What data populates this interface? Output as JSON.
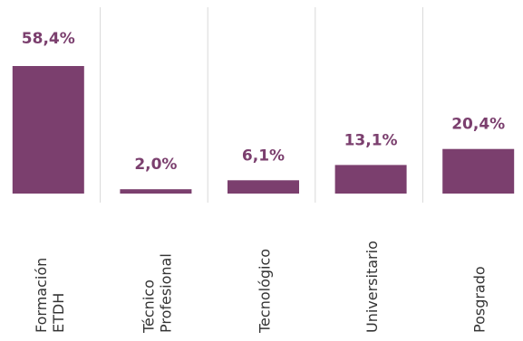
{
  "chart_data": {
    "type": "bar",
    "categories": [
      [
        "Formación",
        "ETDH"
      ],
      [
        "Técnico",
        "Profesional"
      ],
      [
        "Tecnológico"
      ],
      [
        "Universitario"
      ],
      [
        "Posgrado"
      ]
    ],
    "values": [
      58.4,
      2.0,
      6.1,
      13.1,
      20.4
    ],
    "value_labels": [
      "58,4%",
      "2,0%",
      "6,1%",
      "13,1%",
      "20,4%"
    ],
    "ylim": [
      0,
      58.4
    ],
    "grid": "vertical separators between categories",
    "legend": "none",
    "title": "",
    "xlabel": "",
    "ylabel": ""
  },
  "colors": {
    "bar": "#7b3f6e",
    "label": "#7b3f6e",
    "separator": "#d9d9d9",
    "category_text": "#333333"
  }
}
